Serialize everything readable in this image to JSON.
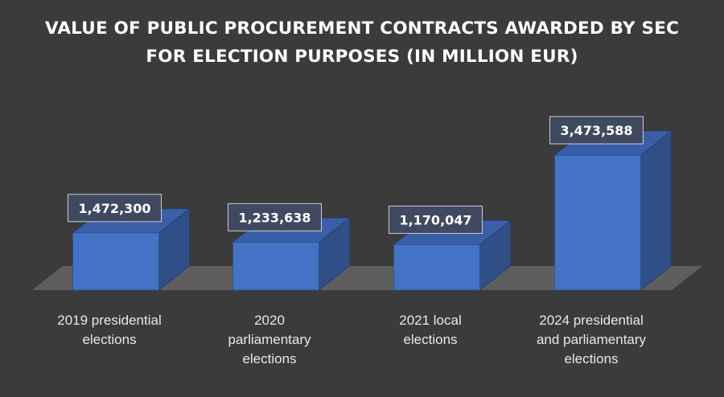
{
  "chart_data": {
    "type": "bar",
    "title": "VALUE OF PUBLIC PROCUREMENT CONTRACTS AWARDED BY SEC FOR ELECTION PURPOSES (IN MILLION EUR)",
    "title_lines": [
      "VALUE OF PUBLIC PROCUREMENT CONTRACTS AWARDED BY SEC",
      "FOR ELECTION PURPOSES (IN MILLION EUR)"
    ],
    "categories": [
      "2019 presidential elections",
      "2020 parliamentary elections",
      "2021 local elections",
      "2024 presidential and parliamentary elections"
    ],
    "category_lines": [
      [
        "2019 presidential",
        "elections"
      ],
      [
        "2020",
        "parliamentary",
        "elections"
      ],
      [
        "2021 local",
        "elections"
      ],
      [
        "2024 presidential",
        "and parliamentary",
        "elections"
      ]
    ],
    "values": [
      1472300,
      1233638,
      1170047,
      3473588
    ],
    "value_labels": [
      "1,472,300",
      "1,233,638",
      "1,170,047",
      "3,473,588"
    ],
    "style": "3d-column",
    "grid": false,
    "legend": "none",
    "colors": {
      "background": "#3b3b3b",
      "bar_front": "#4472c4",
      "bar_side": "#2f4f86",
      "bar_top": "#3a5fa8",
      "floor": "#5e5e5e",
      "label_box": "#3f4960",
      "text": "#ffffff"
    }
  }
}
